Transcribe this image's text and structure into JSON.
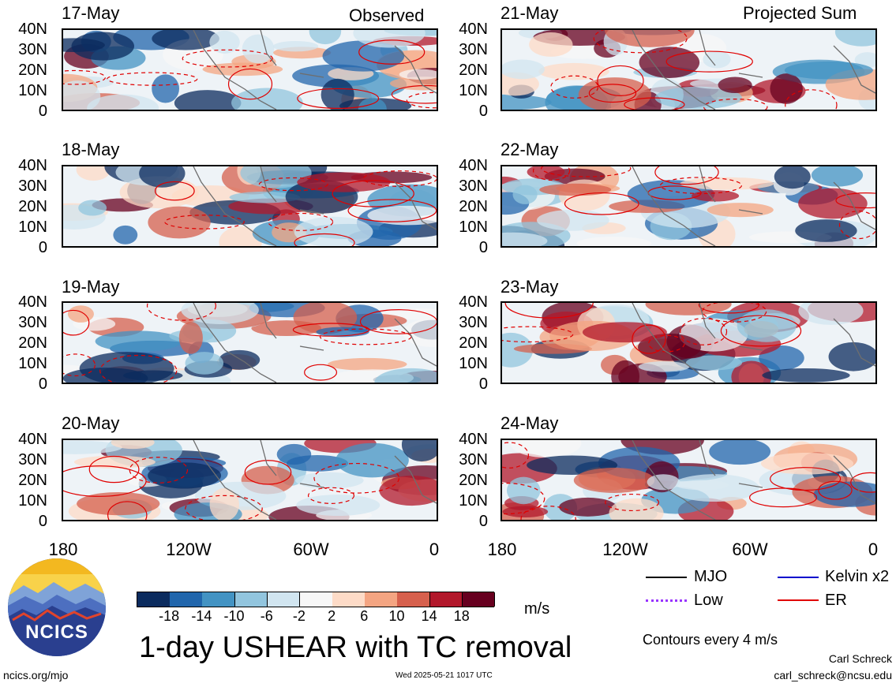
{
  "header": {
    "left_label": "Observed",
    "right_label": "Projected Sum"
  },
  "panels_left": [
    {
      "date": "17-May"
    },
    {
      "date": "18-May"
    },
    {
      "date": "19-May"
    },
    {
      "date": "20-May"
    }
  ],
  "panels_right": [
    {
      "date": "21-May"
    },
    {
      "date": "22-May"
    },
    {
      "date": "23-May"
    },
    {
      "date": "24-May"
    }
  ],
  "yticks": [
    "40N",
    "30N",
    "20N",
    "10N",
    "0"
  ],
  "xticks": [
    "180",
    "120W",
    "60W",
    "0"
  ],
  "colorbar": {
    "tick_labels": [
      "-18",
      "-14",
      "-10",
      "-6",
      "-2",
      "2",
      "6",
      "10",
      "14",
      "18"
    ],
    "colors": [
      "#0b2b5e",
      "#2166ac",
      "#4393c3",
      "#92c5de",
      "#d1e5f0",
      "#f7f7f7",
      "#fddbc7",
      "#f4a582",
      "#d6604d",
      "#b2182b",
      "#67001f"
    ],
    "unit": "m/s"
  },
  "title": "1-day USHEAR with TC removal",
  "legend": {
    "items": [
      {
        "label": "MJO",
        "color": "#000000",
        "style": "solid"
      },
      {
        "label": "Kelvin x2",
        "color": "#0000cc",
        "style": "solid"
      },
      {
        "label": "Low",
        "color": "#9933ff",
        "style": "dotted"
      },
      {
        "label": "ER",
        "color": "#e00000",
        "style": "solid"
      }
    ],
    "note": "Contours every 4 m/s"
  },
  "credits": {
    "name": "Carl Schreck",
    "email": "carl_schreck@ncsu.edu",
    "site": "ncics.org/mjo",
    "timestamp": "Wed 2025-05-21 1017 UTC",
    "logo_text": "NCICS"
  },
  "chart_data": {
    "type": "heatmap",
    "title": "1-day USHEAR with TC removal",
    "variable": "USHEAR",
    "unit": "m/s",
    "x_range": [
      "180",
      "0"
    ],
    "y_range": [
      "0",
      "40N"
    ],
    "levels": [
      -18,
      -14,
      -10,
      -6,
      -2,
      2,
      6,
      10,
      14,
      18
    ],
    "contour_interval_mps": 4,
    "observed_dates": [
      "17-May",
      "18-May",
      "19-May",
      "20-May"
    ],
    "projected_dates": [
      "21-May",
      "22-May",
      "23-May",
      "24-May"
    ],
    "series": [
      {
        "name": "MJO"
      },
      {
        "name": "Kelvin x2"
      },
      {
        "name": "Low"
      },
      {
        "name": "ER"
      }
    ]
  }
}
